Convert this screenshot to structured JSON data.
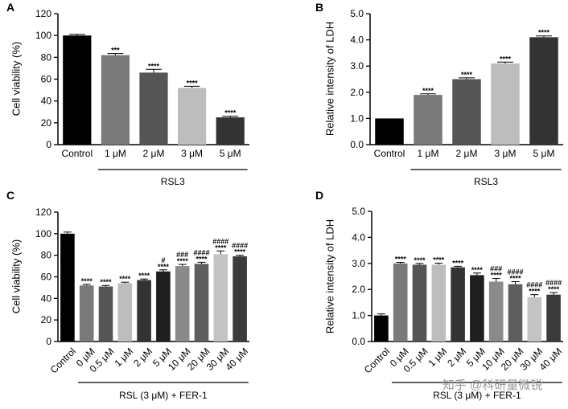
{
  "watermark": "知乎 @科研量微锐",
  "chart_data": [
    {
      "panel": "A",
      "type": "bar",
      "ylabel": "Cell viability (%)",
      "ylim": [
        0,
        120
      ],
      "yticks": [
        "0",
        "20",
        "40",
        "60",
        "80",
        "100",
        "120"
      ],
      "categories": [
        "Control",
        "1 μM",
        "2 μM",
        "3 μM",
        "5 μM"
      ],
      "values": [
        100,
        82,
        66,
        52,
        25
      ],
      "errors": [
        1,
        1.5,
        3,
        1.5,
        1
      ],
      "colors": [
        "#000000",
        "#7a7a7a",
        "#555555",
        "#bdbdbd",
        "#333333"
      ],
      "annotations": [
        [
          "",
          ""
        ],
        [
          "***",
          ""
        ],
        [
          "****",
          ""
        ],
        [
          "****",
          ""
        ],
        [
          "****",
          ""
        ]
      ],
      "group_label": "RSL3",
      "group_from": 1,
      "group_to": 4
    },
    {
      "panel": "B",
      "type": "bar",
      "ylabel": "Relative intensity of LDH",
      "ylim": [
        0,
        5
      ],
      "yticks": [
        "0.0",
        "1.0",
        "2.0",
        "3.0",
        "4.0",
        "5.0"
      ],
      "categories": [
        "Control",
        "1 μM",
        "2 μM",
        "3 μM",
        "5 μM"
      ],
      "values": [
        1.0,
        1.9,
        2.5,
        3.1,
        4.1
      ],
      "errors": [
        0,
        0.04,
        0.05,
        0.05,
        0.05
      ],
      "colors": [
        "#000000",
        "#7a7a7a",
        "#555555",
        "#bdbdbd",
        "#333333"
      ],
      "annotations": [
        [
          "",
          ""
        ],
        [
          "****",
          ""
        ],
        [
          "****",
          ""
        ],
        [
          "****",
          ""
        ],
        [
          "****",
          ""
        ]
      ],
      "group_label": "RSL3",
      "group_from": 1,
      "group_to": 4
    },
    {
      "panel": "C",
      "type": "bar",
      "ylabel": "Cell viability (%)",
      "ylim": [
        0,
        120
      ],
      "yticks": [
        "0",
        "20",
        "40",
        "60",
        "80",
        "100",
        "120"
      ],
      "categories": [
        "Control",
        "0 μM",
        "0.5 μM",
        "1 μM",
        "2 μM",
        "5 μM",
        "10 μM",
        "20 μM",
        "30 μM",
        "40 μM"
      ],
      "values": [
        100,
        52,
        51,
        54,
        57,
        65,
        70,
        72,
        81,
        79
      ],
      "errors": [
        1.5,
        1,
        1,
        1,
        1,
        1.5,
        1.5,
        1.5,
        3,
        1
      ],
      "colors": [
        "#000000",
        "#7a7a7a",
        "#555555",
        "#bdbdbd",
        "#333333",
        "#1f1f1f",
        "#8a8a8a",
        "#5e5e5e",
        "#c4c4c4",
        "#3b3b3b"
      ],
      "annotations": [
        [
          "",
          ""
        ],
        [
          "****",
          ""
        ],
        [
          "****",
          ""
        ],
        [
          "****",
          ""
        ],
        [
          "****",
          ""
        ],
        [
          "****",
          "#"
        ],
        [
          "****",
          "###"
        ],
        [
          "****",
          "####"
        ],
        [
          "****",
          "####"
        ],
        [
          "****",
          "####"
        ]
      ],
      "group_label": "RSL (3 μM) + FER-1",
      "group_from": 1,
      "group_to": 9
    },
    {
      "panel": "D",
      "type": "bar",
      "ylabel": "Relative intensity of LDH",
      "ylim": [
        0,
        5
      ],
      "yticks": [
        "0.0",
        "1.0",
        "2.0",
        "3.0",
        "4.0",
        "5.0"
      ],
      "categories": [
        "Control",
        "0 μM",
        "0.5 μM",
        "1 μM",
        "2 μM",
        "5 μM",
        "10 μM",
        "20 μM",
        "30 μM",
        "40 μM"
      ],
      "values": [
        1.0,
        3.0,
        2.95,
        2.95,
        2.85,
        2.55,
        2.3,
        2.2,
        1.7,
        1.8
      ],
      "errors": [
        0.06,
        0.04,
        0.05,
        0.06,
        0.04,
        0.08,
        0.12,
        0.1,
        0.1,
        0.08
      ],
      "colors": [
        "#000000",
        "#7a7a7a",
        "#555555",
        "#bdbdbd",
        "#333333",
        "#1f1f1f",
        "#8a8a8a",
        "#5e5e5e",
        "#c4c4c4",
        "#3b3b3b"
      ],
      "annotations": [
        [
          "",
          ""
        ],
        [
          "****",
          ""
        ],
        [
          "****",
          ""
        ],
        [
          "****",
          ""
        ],
        [
          "****",
          ""
        ],
        [
          "****",
          ""
        ],
        [
          "****",
          "###"
        ],
        [
          "****",
          "####"
        ],
        [
          "****",
          "####"
        ],
        [
          "****",
          "####"
        ]
      ],
      "group_label": "RSL (3 μM) + FER-1",
      "group_from": 1,
      "group_to": 9
    }
  ]
}
